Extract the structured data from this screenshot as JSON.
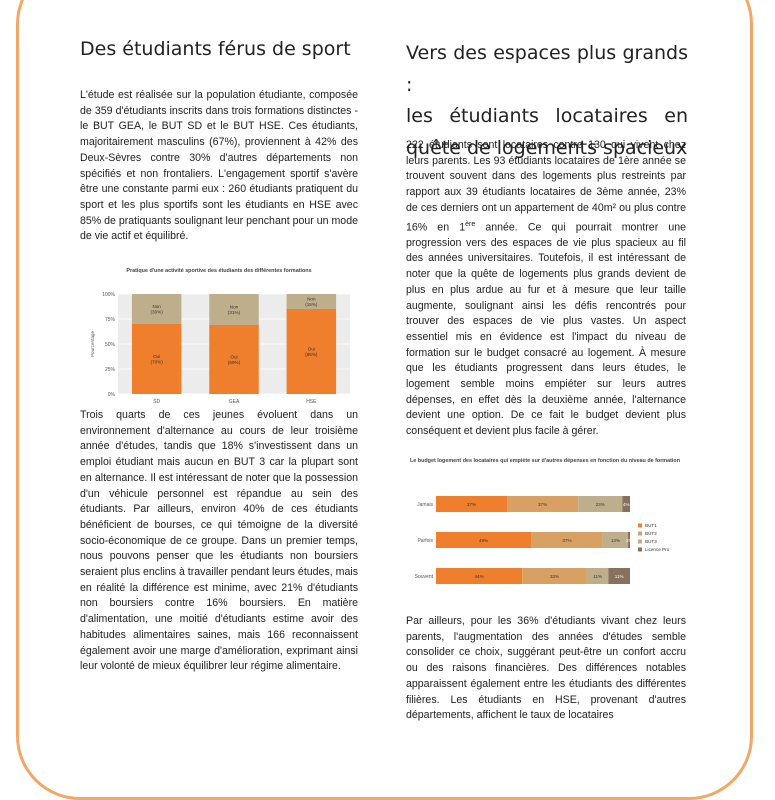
{
  "left": {
    "title": "Des étudiants férus de sport",
    "para1": "L'étude est réalisée sur la population étudiante, composée de 359 d'étudiants inscrits dans trois formations distinctes - le BUT GEA, le BUT SD et le BUT HSE. Ces étudiants, majoritairement masculins (67%), proviennent à 42% des Deux-Sèvres contre 30% d'autres départements non spécifiés et non frontaliers. L'engagement sportif s'avère être une constante parmi eux : 260 étudiants pratiquent du sport et les plus sportifs sont les étudiants en HSE avec 85% de pratiquants soulignant leur penchant pour un mode de vie actif et équilibré.",
    "para2": "Trois quarts de ces jeunes évoluent dans un environnement d'alternance au cours de leur troisième année d'études, tandis que 18% s'investissent dans un emploi étudiant mais aucun en BUT 3 car la plupart sont en alternance. Il est intéressant de noter que la possession d'un véhicule personnel est répandue au sein des étudiants. Par ailleurs, environ 40% de ces étudiants bénéficient de bourses, ce qui témoigne de la diversité socio-économique de ce groupe. Dans un premier temps, nous pouvons penser que les étudiants non boursiers seraient plus enclins à travailler pendant leurs études, mais en réalité la différence est minime, avec 21% d'étudiants non boursiers contre 16% boursiers. En matière d'alimentation, une moitié d'étudiants estime avoir des habitudes alimentaires saines, mais 166 reconnaissent également avoir une marge d'amélioration, exprimant ainsi leur volonté de mieux équilibrer leur régime alimentaire."
  },
  "right": {
    "title_lines": [
      "Vers des espaces plus grands :",
      "les étudiants locataires en",
      "quête de logements spacieux"
    ],
    "para1_a": "222 étudiants sont locataires contre 130 qui vivent chez leurs parents. Les 93 étudiants locataires de 1ère année se trouvent souvent dans des logements plus restreints par rapport aux 39 étudiants locataires de 3ème année, 23% de ces derniers ont un appartement de 40m² ou plus contre 16% en 1",
    "para1_sup": "ère",
    "para1_b": " année. Ce qui pourrait montrer une progression vers des espaces de vie plus spacieux au fil des années universitaires. Toutefois, il est intéressant de noter que la quête de logements plus grands devient de plus en plus ardue au fur et à mesure que leur taille augmente, soulignant ainsi les défis rencontrés pour trouver des espaces de vie plus vastes. Un aspect essentiel mis en évidence est l'impact du niveau de formation sur le budget consacré au logement. À mesure que les étudiants progressent dans leurs études, le logement semble moins empiéter sur leurs autres dépenses, en effet dès la deuxième année, l'alternance devient une option. De ce fait le budget devient plus conséquent et devient plus facile à gérer.",
    "para2": "Par ailleurs, pour les 36% d'étudiants vivant chez leurs parents, l'augmentation des années d'études semble consolider ce choix, suggérant peut-être un confort accru ou des raisons financières. Des différences notables apparaissent également entre les étudiants des différentes filières. Les étudiants en HSE, provenant d'autres départements, affichent le taux de locataires"
  },
  "chart_data": [
    {
      "type": "bar",
      "stacked": true,
      "title": "Pratique d'une activité sportive des étudiants des différentes formations",
      "ylabel": "Pourcentage",
      "xlabel": "",
      "ylim": [
        0,
        100
      ],
      "yticks": [
        "0%",
        "25%",
        "50%",
        "75%",
        "100%"
      ],
      "categories": [
        "SD",
        "GEA",
        "HSE"
      ],
      "series": [
        {
          "name": "Oui",
          "values": [
            70,
            69,
            85
          ],
          "labels": [
            "Oui\n(70%)",
            "Oui\n(69%)",
            "Oui\n(85%)"
          ],
          "color": "#ef7f2d"
        },
        {
          "name": "Non",
          "values": [
            30,
            31,
            15
          ],
          "labels": [
            "Non\n(30%)",
            "Non\n(31%)",
            "Non\n(15%)"
          ],
          "color": "#bfae8c"
        }
      ],
      "grid": true,
      "background": "#ececec"
    },
    {
      "type": "bar",
      "stacked": true,
      "horizontal": true,
      "title": "Le budget logement des locataires qui empiète sur d'autres dépenses en fonction du niveau de formation",
      "categories": [
        "Jamais",
        "Parfois",
        "Souvent"
      ],
      "series": [
        {
          "name": "BUT1",
          "values": [
            37,
            49,
            44
          ],
          "color": "#ef7f2d"
        },
        {
          "name": "BUT2",
          "values": [
            37,
            37,
            33
          ],
          "color": "#d8a163"
        },
        {
          "name": "BUT3",
          "values": [
            23,
            13,
            11
          ],
          "color": "#bfae8c"
        },
        {
          "name": "Licence Pro",
          "values": [
            4,
            1,
            11
          ],
          "color": "#86705e"
        }
      ],
      "value_labels": [
        [
          "37%",
          "37%",
          "23%",
          "4%"
        ],
        [
          "49%",
          "37%",
          "13%",
          "1%"
        ],
        [
          "44%",
          "33%",
          "11%",
          "11%"
        ]
      ],
      "legend": "right"
    }
  ]
}
